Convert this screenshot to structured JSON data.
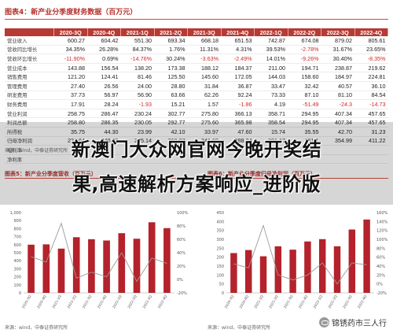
{
  "figure4": {
    "title": "图表4：新产业分季度财务数据（百万元）",
    "columns": [
      "2020-3Q",
      "2020-4Q",
      "2021-1Q",
      "2021-2Q",
      "2021-3Q",
      "2021-4Q",
      "2022-1Q",
      "2022-2Q",
      "2022-3Q",
      "2022-4Q"
    ],
    "rows": [
      {
        "label": "营业收入",
        "values": [
          "600.27",
          "604.42",
          "551.30",
          "693.34",
          "668.18",
          "651.53",
          "742.87",
          "674.08",
          "879.02",
          "805.61"
        ]
      },
      {
        "label": "营收同比增长",
        "values": [
          "34.35%",
          "26.28%",
          "84.37%",
          "1.76%",
          "11.31%",
          "4.31%",
          "39.53%",
          "-2.78%",
          "31.67%",
          "23.65%"
        ]
      },
      {
        "label": "营收环比增长",
        "values": [
          "-11.90%",
          "0.69%",
          "-14.76%",
          "30.24%",
          "-3.63%",
          "-2.49%",
          "14.01%",
          "-9.26%",
          "30.40%",
          "-8.35%"
        ]
      },
      {
        "label": "营业成本",
        "values": [
          "143.88",
          "156.54",
          "138.20",
          "173.38",
          "188.12",
          "184.37",
          "211.00",
          "194.71",
          "238.87",
          "219.62"
        ]
      },
      {
        "label": "销售费用",
        "values": [
          "121.20",
          "124.41",
          "81.46",
          "125.50",
          "145.60",
          "172.05",
          "144.03",
          "158.60",
          "184.97",
          "224.81"
        ]
      },
      {
        "label": "管理费用",
        "values": [
          "27.40",
          "26.56",
          "24.00",
          "28.80",
          "31.84",
          "36.87",
          "33.47",
          "32.42",
          "40.57",
          "36.10"
        ]
      },
      {
        "label": "研发费用",
        "values": [
          "37.73",
          "56.97",
          "56.90",
          "63.66",
          "62.26",
          "92.24",
          "73.33",
          "87.10",
          "81.10",
          "84.54"
        ]
      },
      {
        "label": "财务费用",
        "values": [
          "17.91",
          "28.24",
          "-1.93",
          "15.21",
          "1.57",
          "-1.86",
          "4.19",
          "-51.49",
          "-24.3",
          "-14.73"
        ]
      },
      {
        "label": "营业利润",
        "values": [
          "258.75",
          "286.47",
          "230.24",
          "302.77",
          "275.80",
          "366.13",
          "358.71",
          "294.95",
          "407.34",
          "457.65"
        ]
      },
      {
        "label": "利润总额",
        "values": [
          "258.80",
          "286.35",
          "230.05",
          "292.77",
          "275.60",
          "365.98",
          "358.54",
          "294.95",
          "407.34",
          "457.65"
        ]
      },
      {
        "label": "所得税",
        "values": [
          "35.75",
          "44.30",
          "23.99",
          "42.10",
          "33.97",
          "47.60",
          "15.74",
          "35.55",
          "42.70",
          "31.23"
        ]
      },
      {
        "label": "归母净利润",
        "values": [
          "222.64",
          "240.00",
          "205.14",
          "260.87",
          "241.69",
          "288.24",
          "301.17",
          "261.1",
          "354.99",
          "411.22"
        ]
      },
      {
        "label": "毛利率",
        "values": [
          "",
          "",
          "",
          "",
          "",
          "",
          "",
          "",
          "",
          ""
        ]
      },
      {
        "label": "净利率",
        "values": [
          "",
          "",
          "",
          "",
          "",
          "",
          "",
          "",
          "",
          ""
        ]
      }
    ],
    "source": "来源：wind，中泰证券研究所"
  },
  "figure5": {
    "title": "图表5：新产业分季度营收（百万元）",
    "source": "来源：wind，中泰证券研究所"
  },
  "figure6": {
    "title": "图表6：新产业分季度归母净利润（百万元）",
    "source": "来源：wind，中泰证券研究所"
  },
  "headline": {
    "line1": "新澳门大众网官网今晚开奖结",
    "line2": "果,高速解析方案响应_进阶版"
  },
  "watermark": {
    "text": "锦锈药市三人行",
    "icon": "wechat-icon"
  },
  "colors": {
    "accent": "#b73a33",
    "bar": "#b4222b",
    "line": "#9a9a9a"
  },
  "chart_data": [
    {
      "type": "bar",
      "categories": [
        "2020-3Q",
        "2020-4Q",
        "2021-1Q",
        "2021-2Q",
        "2021-3Q",
        "2021-4Q",
        "2022-1Q",
        "2022-2Q",
        "2022-3Q",
        "2022-4Q"
      ],
      "series": [
        {
          "values": [
            600,
            604,
            551,
            693,
            668,
            652,
            743,
            674,
            879,
            806
          ]
        },
        {
          "values": [
            34,
            26,
            84,
            2,
            11,
            4,
            40,
            -3,
            32,
            24
          ]
        }
      ],
      "ylim": [
        0,
        1000
      ],
      "yticks": [
        "1,000",
        "900",
        "800",
        "700",
        "600",
        "500",
        "400",
        "300",
        "200",
        "100",
        "0"
      ],
      "y2ticks": [
        "100%",
        "80%",
        "60%",
        "40%",
        "20%",
        "0%",
        "-20%"
      ],
      "y2lim": [
        -20,
        100
      ]
    },
    {
      "type": "bar",
      "categories": [
        "2020-3Q",
        "2020-4Q",
        "2021-1Q",
        "2021-2Q",
        "2021-3Q",
        "2021-4Q",
        "2022-1Q",
        "2022-2Q",
        "2022-3Q",
        "2022-4Q"
      ],
      "series": [
        {
          "values": [
            223,
            240,
            205,
            261,
            242,
            288,
            301,
            261,
            355,
            411
          ]
        },
        {
          "values": [
            45,
            36,
            131,
            20,
            9,
            20,
            47,
            0,
            47,
            43
          ]
        }
      ],
      "ylim": [
        0,
        450
      ],
      "yticks": [
        "450",
        "400",
        "350",
        "300",
        "250",
        "200",
        "150",
        "100",
        "50",
        "0"
      ],
      "y2ticks": [
        "160%",
        "140%",
        "120%",
        "100%",
        "80%",
        "60%",
        "40%",
        "20%",
        "0%",
        "-20%"
      ],
      "y2lim": [
        -20,
        160
      ]
    }
  ]
}
